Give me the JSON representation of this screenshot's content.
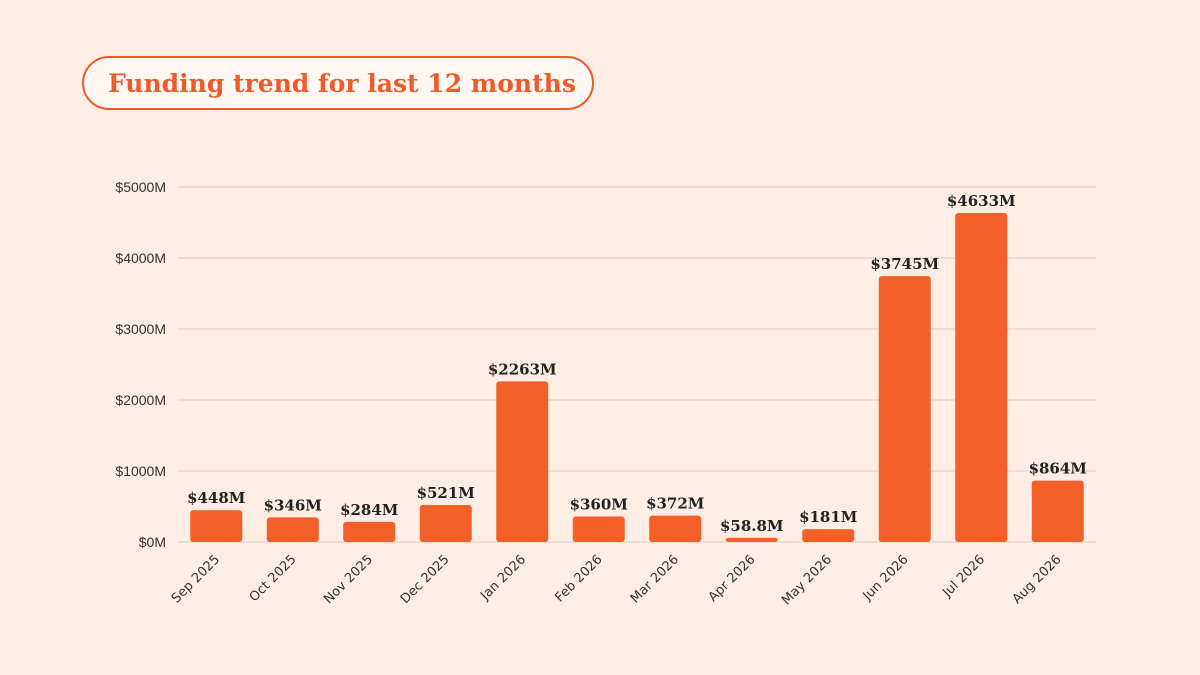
{
  "header": {
    "title": "Funding trend for last 12 months"
  },
  "colors": {
    "bar": "#f26027",
    "accent": "#ef5a2a",
    "grid": "#d9cfca",
    "background": "#fdede5"
  },
  "chart_data": {
    "type": "bar",
    "title": "Funding trend for last 12 months",
    "xlabel": "",
    "ylabel": "",
    "ylim": [
      0,
      5000
    ],
    "y_ticks": [
      0,
      1000,
      2000,
      3000,
      4000,
      5000
    ],
    "y_tick_labels": [
      "$0M",
      "$1000M",
      "$2000M",
      "$3000M",
      "$4000M",
      "$5000M"
    ],
    "grid": true,
    "categories": [
      "Sep 2025",
      "Oct 2025",
      "Nov 2025",
      "Dec 2025",
      "Jan 2026",
      "Feb 2026",
      "Mar 2026",
      "Apr 2026",
      "May 2026",
      "Jun 2026",
      "Jul 2026",
      "Aug 2026"
    ],
    "values": [
      448,
      346,
      284,
      521,
      2263,
      360,
      372,
      58.8,
      181,
      3745,
      4633,
      864
    ],
    "data_labels": [
      "$448M",
      "$346M",
      "$284M",
      "$521M",
      "$2263M",
      "$360M",
      "$372M",
      "$58.8M",
      "$181M",
      "$3745M",
      "$4633M",
      "$864M"
    ]
  }
}
